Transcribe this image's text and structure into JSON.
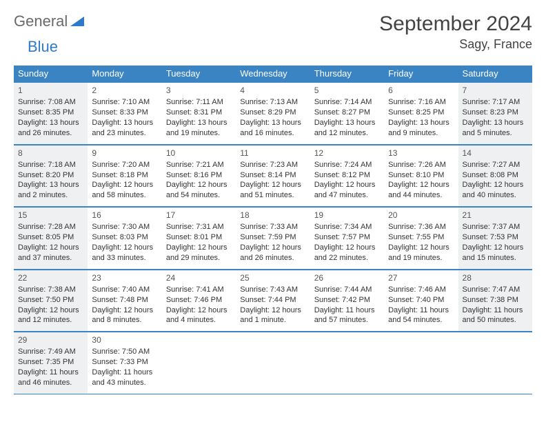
{
  "logo": {
    "text1": "General",
    "text2": "Blue"
  },
  "title": "September 2024",
  "location": "Sagy, France",
  "colors": {
    "header_bg": "#3b84c4",
    "header_text": "#ffffff",
    "row_border": "#3b84c4",
    "shaded_bg": "#eef0f1",
    "logo_gray": "#6a6a6a",
    "logo_blue": "#2c7ac9"
  },
  "day_headers": [
    "Sunday",
    "Monday",
    "Tuesday",
    "Wednesday",
    "Thursday",
    "Friday",
    "Saturday"
  ],
  "weeks": [
    [
      {
        "n": "1",
        "shaded": true,
        "sunrise": "7:08 AM",
        "sunset": "8:35 PM",
        "daylight": "13 hours and 26 minutes."
      },
      {
        "n": "2",
        "shaded": false,
        "sunrise": "7:10 AM",
        "sunset": "8:33 PM",
        "daylight": "13 hours and 23 minutes."
      },
      {
        "n": "3",
        "shaded": false,
        "sunrise": "7:11 AM",
        "sunset": "8:31 PM",
        "daylight": "13 hours and 19 minutes."
      },
      {
        "n": "4",
        "shaded": false,
        "sunrise": "7:13 AM",
        "sunset": "8:29 PM",
        "daylight": "13 hours and 16 minutes."
      },
      {
        "n": "5",
        "shaded": false,
        "sunrise": "7:14 AM",
        "sunset": "8:27 PM",
        "daylight": "13 hours and 12 minutes."
      },
      {
        "n": "6",
        "shaded": false,
        "sunrise": "7:16 AM",
        "sunset": "8:25 PM",
        "daylight": "13 hours and 9 minutes."
      },
      {
        "n": "7",
        "shaded": true,
        "sunrise": "7:17 AM",
        "sunset": "8:23 PM",
        "daylight": "13 hours and 5 minutes."
      }
    ],
    [
      {
        "n": "8",
        "shaded": true,
        "sunrise": "7:18 AM",
        "sunset": "8:20 PM",
        "daylight": "13 hours and 2 minutes."
      },
      {
        "n": "9",
        "shaded": false,
        "sunrise": "7:20 AM",
        "sunset": "8:18 PM",
        "daylight": "12 hours and 58 minutes."
      },
      {
        "n": "10",
        "shaded": false,
        "sunrise": "7:21 AM",
        "sunset": "8:16 PM",
        "daylight": "12 hours and 54 minutes."
      },
      {
        "n": "11",
        "shaded": false,
        "sunrise": "7:23 AM",
        "sunset": "8:14 PM",
        "daylight": "12 hours and 51 minutes."
      },
      {
        "n": "12",
        "shaded": false,
        "sunrise": "7:24 AM",
        "sunset": "8:12 PM",
        "daylight": "12 hours and 47 minutes."
      },
      {
        "n": "13",
        "shaded": false,
        "sunrise": "7:26 AM",
        "sunset": "8:10 PM",
        "daylight": "12 hours and 44 minutes."
      },
      {
        "n": "14",
        "shaded": true,
        "sunrise": "7:27 AM",
        "sunset": "8:08 PM",
        "daylight": "12 hours and 40 minutes."
      }
    ],
    [
      {
        "n": "15",
        "shaded": true,
        "sunrise": "7:28 AM",
        "sunset": "8:05 PM",
        "daylight": "12 hours and 37 minutes."
      },
      {
        "n": "16",
        "shaded": false,
        "sunrise": "7:30 AM",
        "sunset": "8:03 PM",
        "daylight": "12 hours and 33 minutes."
      },
      {
        "n": "17",
        "shaded": false,
        "sunrise": "7:31 AM",
        "sunset": "8:01 PM",
        "daylight": "12 hours and 29 minutes."
      },
      {
        "n": "18",
        "shaded": false,
        "sunrise": "7:33 AM",
        "sunset": "7:59 PM",
        "daylight": "12 hours and 26 minutes."
      },
      {
        "n": "19",
        "shaded": false,
        "sunrise": "7:34 AM",
        "sunset": "7:57 PM",
        "daylight": "12 hours and 22 minutes."
      },
      {
        "n": "20",
        "shaded": false,
        "sunrise": "7:36 AM",
        "sunset": "7:55 PM",
        "daylight": "12 hours and 19 minutes."
      },
      {
        "n": "21",
        "shaded": true,
        "sunrise": "7:37 AM",
        "sunset": "7:53 PM",
        "daylight": "12 hours and 15 minutes."
      }
    ],
    [
      {
        "n": "22",
        "shaded": true,
        "sunrise": "7:38 AM",
        "sunset": "7:50 PM",
        "daylight": "12 hours and 12 minutes."
      },
      {
        "n": "23",
        "shaded": false,
        "sunrise": "7:40 AM",
        "sunset": "7:48 PM",
        "daylight": "12 hours and 8 minutes."
      },
      {
        "n": "24",
        "shaded": false,
        "sunrise": "7:41 AM",
        "sunset": "7:46 PM",
        "daylight": "12 hours and 4 minutes."
      },
      {
        "n": "25",
        "shaded": false,
        "sunrise": "7:43 AM",
        "sunset": "7:44 PM",
        "daylight": "12 hours and 1 minute."
      },
      {
        "n": "26",
        "shaded": false,
        "sunrise": "7:44 AM",
        "sunset": "7:42 PM",
        "daylight": "11 hours and 57 minutes."
      },
      {
        "n": "27",
        "shaded": false,
        "sunrise": "7:46 AM",
        "sunset": "7:40 PM",
        "daylight": "11 hours and 54 minutes."
      },
      {
        "n": "28",
        "shaded": true,
        "sunrise": "7:47 AM",
        "sunset": "7:38 PM",
        "daylight": "11 hours and 50 minutes."
      }
    ],
    [
      {
        "n": "29",
        "shaded": true,
        "sunrise": "7:49 AM",
        "sunset": "7:35 PM",
        "daylight": "11 hours and 46 minutes."
      },
      {
        "n": "30",
        "shaded": false,
        "sunrise": "7:50 AM",
        "sunset": "7:33 PM",
        "daylight": "11 hours and 43 minutes."
      },
      null,
      null,
      null,
      null,
      null
    ]
  ],
  "labels": {
    "sunrise": "Sunrise:",
    "sunset": "Sunset:",
    "daylight": "Daylight:"
  }
}
